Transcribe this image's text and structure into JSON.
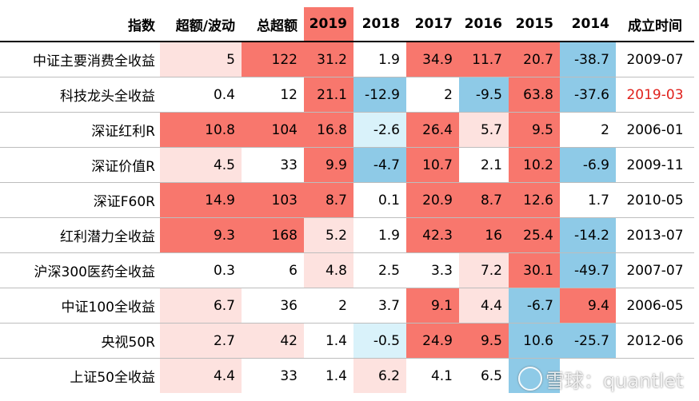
{
  "table": {
    "headers": [
      "指数",
      "超额/波动",
      "总超额",
      "2019",
      "2018",
      "2017",
      "2016",
      "2015",
      "2014",
      "成立时间"
    ],
    "highlight_header": "2019",
    "colors": {
      "red": "#f8776d",
      "pink": "#fde2df",
      "blue": "#8ecae7",
      "light_blue": "#d9f2fa",
      "white": "#ffffff",
      "date_red": "#e0201b"
    },
    "rows": [
      {
        "cells": [
          "中证主要消费全收益",
          "5",
          "122",
          "31.2",
          "1.9",
          "34.9",
          "11.7",
          "20.7",
          "-38.7",
          "2009-07"
        ],
        "shades": [
          "white",
          "pink",
          "red",
          "red",
          "white",
          "red",
          "red",
          "red",
          "blue",
          "white"
        ]
      },
      {
        "cells": [
          "科技龙头全收益",
          "0.4",
          "12",
          "21.1",
          "-12.9",
          "2",
          "-9.5",
          "63.8",
          "-37.6",
          "2019-03"
        ],
        "shades": [
          "white",
          "white",
          "white",
          "red",
          "blue",
          "white",
          "blue",
          "red",
          "blue",
          "white"
        ],
        "date_red": true
      },
      {
        "cells": [
          "深证红利R",
          "10.8",
          "104",
          "16.8",
          "-2.6",
          "26.4",
          "5.7",
          "9.5",
          "2",
          "2006-01"
        ],
        "shades": [
          "white",
          "red",
          "red",
          "red",
          "lblue",
          "red",
          "pink",
          "red",
          "white",
          "white"
        ]
      },
      {
        "cells": [
          "深证价值R",
          "4.5",
          "33",
          "9.9",
          "-4.7",
          "10.7",
          "2.1",
          "10.2",
          "-6.9",
          "2009-11"
        ],
        "shades": [
          "white",
          "pink",
          "white",
          "red",
          "blue",
          "red",
          "white",
          "red",
          "blue",
          "white"
        ]
      },
      {
        "cells": [
          "深证F60R",
          "14.9",
          "103",
          "8.7",
          "0.1",
          "20.9",
          "8.7",
          "12.6",
          "1.7",
          "2010-05"
        ],
        "shades": [
          "white",
          "red",
          "red",
          "red",
          "white",
          "red",
          "red",
          "red",
          "white",
          "white"
        ]
      },
      {
        "cells": [
          "红利潜力全收益",
          "9.3",
          "168",
          "5.2",
          "1.9",
          "42.3",
          "16",
          "25.4",
          "-14.2",
          "2013-07"
        ],
        "shades": [
          "white",
          "red",
          "red",
          "pink",
          "white",
          "red",
          "red",
          "red",
          "blue",
          "white"
        ]
      },
      {
        "cells": [
          "沪深300医药全收益",
          "0.3",
          "6",
          "4.8",
          "2.5",
          "3.3",
          "7.2",
          "30.1",
          "-49.7",
          "2007-07"
        ],
        "shades": [
          "white",
          "white",
          "white",
          "pink",
          "white",
          "white",
          "pink",
          "red",
          "blue",
          "white"
        ]
      },
      {
        "cells": [
          "中证100全收益",
          "6.7",
          "36",
          "2",
          "3.7",
          "9.1",
          "4.4",
          "-6.7",
          "9.4",
          "2006-05"
        ],
        "shades": [
          "white",
          "pink",
          "white",
          "white",
          "white",
          "red",
          "pink",
          "blue",
          "red",
          "white"
        ]
      },
      {
        "cells": [
          "央视50R",
          "2.7",
          "42",
          "1.4",
          "-0.5",
          "24.9",
          "9.5",
          "10.6",
          "-25.7",
          "2012-06"
        ],
        "shades": [
          "white",
          "pink",
          "pink",
          "white",
          "lblue",
          "red",
          "red",
          "blue",
          "blue",
          "white"
        ]
      },
      {
        "cells": [
          "上证50全收益",
          "4.4",
          "33",
          "1.4",
          "6.2",
          "4.1",
          "6.5",
          "",
          "",
          ""
        ],
        "shades": [
          "white",
          "pink",
          "white",
          "white",
          "pink",
          "white",
          "white",
          "blue",
          "white",
          "white"
        ]
      }
    ]
  },
  "watermark": {
    "text": "雪球：quantlet"
  }
}
